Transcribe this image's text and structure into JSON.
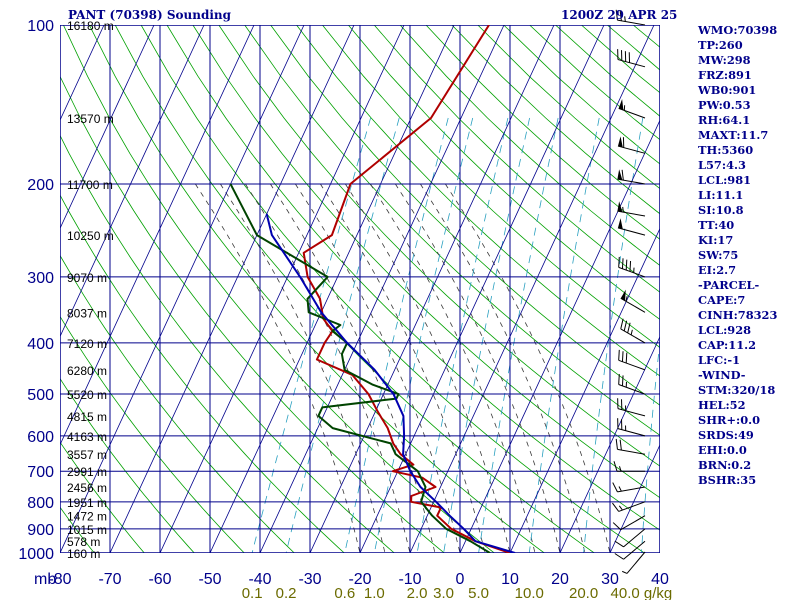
{
  "header": {
    "title": "PANT (70398) Sounding",
    "time": "1200Z 29 APR 25"
  },
  "indices": [
    "WMO:70398",
    "TP:260",
    "MW:298",
    "FRZ:891",
    "WB0:901",
    "PW:0.53",
    "RH:64.1",
    "MAXT:11.7",
    "TH:5360",
    "L57:4.3",
    "LCL:981",
    "LI:11.1",
    "SI:10.8",
    "TT:40",
    "KI:17",
    "SW:75",
    "EI:2.7",
    "-PARCEL-",
    "CAPE:7",
    "CINH:78323",
    "LCL:928",
    "CAP:11.2",
    "LFC:-1",
    "-WIND-",
    "STM:320/18",
    "HEL:52",
    "SHR+:0.0",
    "SRDS:49",
    "EHI:0.0",
    "BRN:0.2",
    "BSHR:35"
  ],
  "colors": {
    "grid": "#00008b",
    "pressure_labels": "#00008b",
    "temp_labels": "#00008b",
    "mixing_labels": "#6b6b00",
    "temperature": "#b00000",
    "dewpoint": "#004400",
    "parcel": "#0000b0",
    "dry_adiabats": "#00a000",
    "moist_adiabats": "#3a3a3a",
    "mixing_lines": "#2aa0c0",
    "barbs": "#000000"
  },
  "chart_data": {
    "type": "line",
    "title": "PANT (70398) Sounding",
    "subtitle": "1200Z 29 APR 25",
    "xlabel": "",
    "ylabel": "mb",
    "y_scale": "log",
    "xlim": [
      -80,
      0
    ],
    "ylim": [
      1000,
      100
    ],
    "pressure_ticks": [
      100,
      200,
      300,
      400,
      500,
      600,
      700,
      800,
      900,
      1000
    ],
    "temp_ticks": [
      -80,
      -70,
      -60,
      -50,
      -40,
      -30,
      -20,
      -10,
      0,
      10,
      20,
      30,
      40
    ],
    "height_labels": [
      {
        "p": 100,
        "label": "16180 m"
      },
      {
        "p": 150,
        "label": "13570 m"
      },
      {
        "p": 200,
        "label": "11700 m"
      },
      {
        "p": 250,
        "label": "10250 m"
      },
      {
        "p": 300,
        "label": "9070 m"
      },
      {
        "p": 350,
        "label": "8037 m"
      },
      {
        "p": 400,
        "label": "7120 m"
      },
      {
        "p": 450,
        "label": "6280 m"
      },
      {
        "p": 500,
        "label": "5520 m"
      },
      {
        "p": 550,
        "label": "4815 m"
      },
      {
        "p": 600,
        "label": "4163 m"
      },
      {
        "p": 650,
        "label": "3557 m"
      },
      {
        "p": 700,
        "label": "2991 m"
      },
      {
        "p": 750,
        "label": "2456 m"
      },
      {
        "p": 800,
        "label": "1951 m"
      },
      {
        "p": 850,
        "label": "1472 m"
      },
      {
        "p": 900,
        "label": "1015 m"
      },
      {
        "p": 950,
        "label": "578 m"
      },
      {
        "p": 1000,
        "label": "160 m"
      }
    ],
    "mixing_ratio_labels": [
      "0.1",
      "0.2",
      "0.6",
      "1.0",
      "2.0",
      "3.0",
      "5.0",
      "10.0",
      "20.0",
      "40.0"
    ],
    "mixing_ratio_unit": "g/kg",
    "series": [
      {
        "key": "temperature",
        "p": [
          100,
          150,
          200,
          250,
          270,
          300,
          330,
          360,
          380,
          400,
          430,
          460,
          500,
          540,
          580,
          620,
          650,
          680,
          700,
          720,
          750,
          780,
          800,
          820,
          850,
          900,
          950,
          1000
        ],
        "t": [
          -43,
          -46,
          -56,
          -55,
          -59,
          -56,
          -51.5,
          -49,
          -46,
          -46.5,
          -46.5,
          -38,
          -33,
          -29.5,
          -26,
          -23.5,
          -21,
          -17.5,
          -21,
          -14.5,
          -11,
          -15,
          -14.5,
          -8,
          -8,
          -4,
          2,
          10
        ]
      },
      {
        "key": "dewpoint",
        "p": [
          200,
          250,
          300,
          330,
          350,
          370,
          380,
          400,
          420,
          450,
          480,
          500,
          510,
          530,
          550,
          580,
          620,
          650,
          700,
          750,
          800,
          850,
          900,
          950,
          1000
        ],
        "t": [
          -80,
          -70,
          -52,
          -54,
          -52.5,
          -45,
          -46,
          -42,
          -42,
          -40,
          -33,
          -27,
          -27,
          -41,
          -41,
          -37,
          -24,
          -22,
          -16,
          -13,
          -12.5,
          -9,
          -5,
          1,
          6
        ]
      },
      {
        "key": "parcel",
        "p": [
          228,
          250,
          300,
          350,
          400,
          450,
          500,
          550,
          600,
          650,
          700,
          750,
          800,
          850,
          900,
          950,
          1000
        ],
        "t": [
          -70,
          -67,
          -57.5,
          -50,
          -42,
          -34,
          -28,
          -24,
          -22,
          -20.5,
          -17.5,
          -14,
          -9.5,
          -5.5,
          -1.5,
          2,
          11
        ]
      }
    ],
    "wind_barbs": [
      {
        "p": 100,
        "dir": 280,
        "spd": 25
      },
      {
        "p": 120,
        "dir": 285,
        "spd": 40
      },
      {
        "p": 150,
        "dir": 290,
        "spd": 55
      },
      {
        "p": 175,
        "dir": 285,
        "spd": 60
      },
      {
        "p": 200,
        "dir": 280,
        "spd": 60
      },
      {
        "p": 230,
        "dir": 280,
        "spd": 55
      },
      {
        "p": 250,
        "dir": 285,
        "spd": 50
      },
      {
        "p": 300,
        "dir": 290,
        "spd": 45
      },
      {
        "p": 350,
        "dir": 300,
        "spd": 55
      },
      {
        "p": 400,
        "dir": 300,
        "spd": 35
      },
      {
        "p": 450,
        "dir": 290,
        "spd": 30
      },
      {
        "p": 500,
        "dir": 290,
        "spd": 25
      },
      {
        "p": 550,
        "dir": 285,
        "spd": 25
      },
      {
        "p": 600,
        "dir": 285,
        "spd": 25
      },
      {
        "p": 650,
        "dir": 280,
        "spd": 20
      },
      {
        "p": 700,
        "dir": 270,
        "spd": 15
      },
      {
        "p": 750,
        "dir": 260,
        "spd": 15
      },
      {
        "p": 800,
        "dir": 250,
        "spd": 15
      },
      {
        "p": 850,
        "dir": 240,
        "spd": 10
      },
      {
        "p": 900,
        "dir": 230,
        "spd": 10
      },
      {
        "p": 950,
        "dir": 230,
        "spd": 10
      },
      {
        "p": 1000,
        "dir": 220,
        "spd": 5
      }
    ]
  }
}
